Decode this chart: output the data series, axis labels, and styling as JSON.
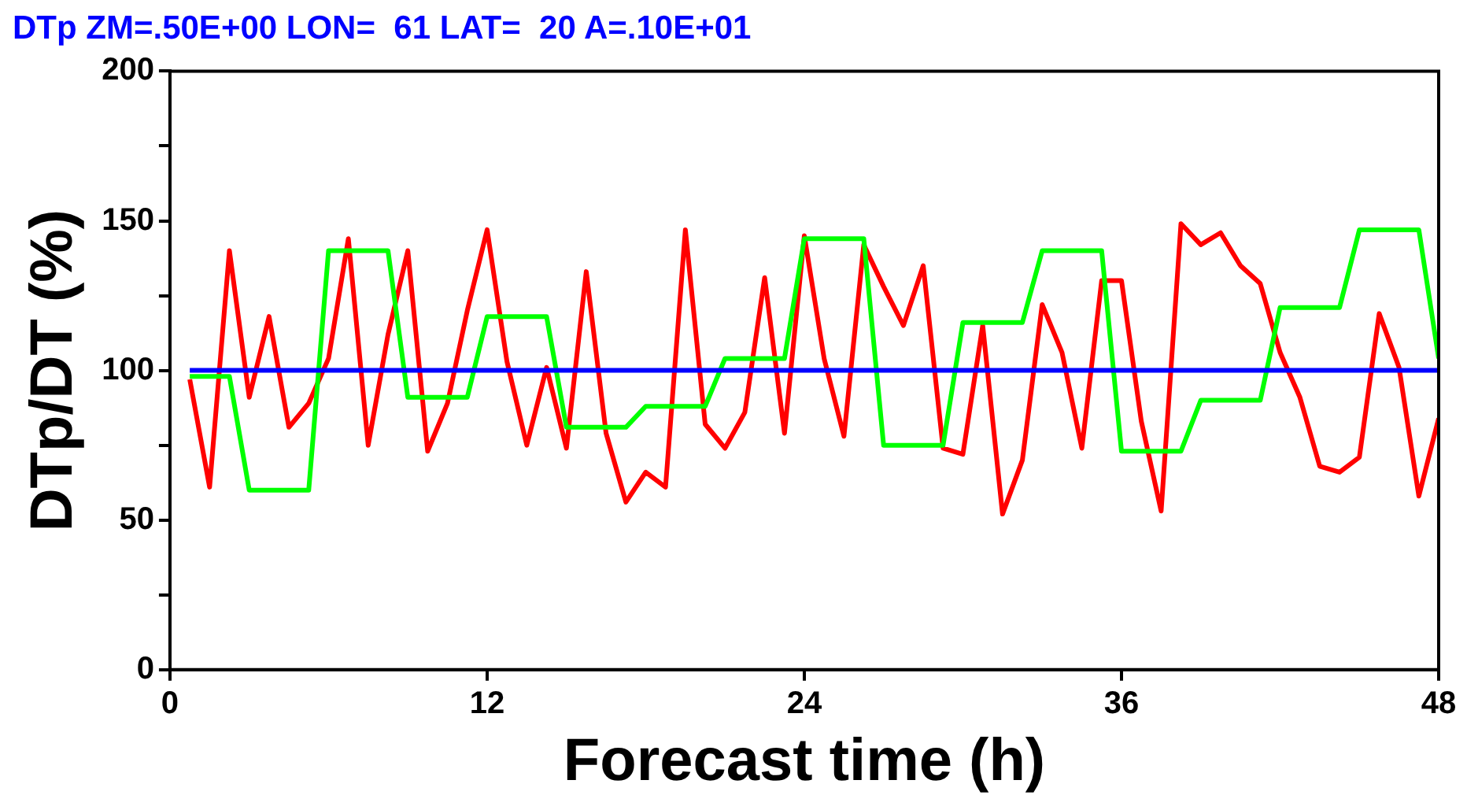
{
  "chart_data": {
    "type": "line",
    "title": "DTp ZM=.50E+00 LON=  61 LAT=  20 A=.10E+01",
    "xlabel": "Forecast time (h)",
    "ylabel": "DTp/DT (%)",
    "xlim": [
      0,
      48
    ],
    "xticks": [
      0,
      12,
      24,
      36,
      48
    ],
    "ylim": [
      0,
      200
    ],
    "yticks": [
      0,
      {
        "value": 25,
        "label": null
      },
      50,
      {
        "value": 75,
        "label": null
      },
      100,
      {
        "value": 125,
        "label": null
      },
      150,
      {
        "value": 175,
        "label": null
      },
      200
    ],
    "grid": false,
    "legend": false,
    "marker": "none",
    "line_style": "solid",
    "series": [
      {
        "color": "#0000ff",
        "x": [
          0.75,
          48
        ],
        "values": [
          100,
          100
        ]
      },
      {
        "color": "#00ff00",
        "x": [
          0.75,
          1.5,
          2.25,
          3,
          3.75,
          4.5,
          5.25,
          6,
          6.75,
          7.5,
          8.25,
          9,
          9.75,
          10.5,
          11.25,
          12,
          12.75,
          13.5,
          14.25,
          15,
          15.75,
          16.5,
          17.25,
          18,
          18.75,
          19.5,
          20.25,
          21,
          21.75,
          22.5,
          23.25,
          24,
          24.75,
          25.5,
          26.25,
          27,
          27.75,
          28.5,
          29.25,
          30,
          30.75,
          31.5,
          32.25,
          33,
          33.75,
          34.5,
          35.25,
          36,
          36.75,
          37.5,
          38.25,
          39,
          39.75,
          40.5,
          41.25,
          42,
          42.75,
          43.5,
          44.25,
          45,
          45.75,
          46.5,
          47.25,
          48
        ],
        "values": [
          98,
          98,
          98,
          60,
          60,
          60,
          60,
          140,
          140,
          140,
          140,
          91,
          91,
          91,
          91,
          118,
          118,
          118,
          118,
          81,
          81,
          81,
          81,
          88,
          88,
          88,
          88,
          104,
          104,
          104,
          104,
          144,
          144,
          144,
          144,
          75,
          75,
          75,
          75,
          116,
          116,
          116,
          116,
          140,
          140,
          140,
          140,
          73,
          73,
          73,
          73,
          90,
          90,
          90,
          90,
          121,
          121,
          121,
          121,
          147,
          147,
          147,
          147,
          104
        ]
      },
      {
        "color": "#ff0000",
        "x": [
          0.75,
          1.5,
          2.25,
          3,
          3.75,
          4.5,
          5.25,
          6,
          6.75,
          7.5,
          8.25,
          9,
          9.75,
          10.5,
          11.25,
          12,
          12.75,
          13.5,
          14.25,
          15,
          15.75,
          16.5,
          17.25,
          18,
          18.75,
          19.5,
          20.25,
          21,
          21.75,
          22.5,
          23.25,
          24,
          24.75,
          25.5,
          26.25,
          27,
          27.75,
          28.5,
          29.25,
          30,
          30.75,
          31.5,
          32.25,
          33,
          33.75,
          34.5,
          35.25,
          36,
          36.75,
          37.5,
          38.25,
          39,
          39.75,
          40.5,
          41.25,
          42,
          42.75,
          43.5,
          44.25,
          45,
          45.75,
          46.5,
          47.25,
          48
        ],
        "values": [
          97,
          61,
          140,
          91,
          118,
          81,
          89,
          104,
          144,
          75,
          112,
          140,
          73,
          89,
          120,
          147,
          103,
          75,
          101,
          74,
          133,
          79,
          56,
          66,
          61,
          147,
          82,
          74,
          86,
          131,
          79,
          145,
          104,
          78,
          142,
          128,
          115,
          135,
          74,
          72,
          115,
          52,
          70,
          122,
          106,
          74,
          130,
          130,
          83,
          53,
          149,
          142,
          146,
          135,
          129,
          106,
          91,
          68,
          66,
          71,
          119,
          101,
          58,
          84
        ]
      }
    ]
  }
}
